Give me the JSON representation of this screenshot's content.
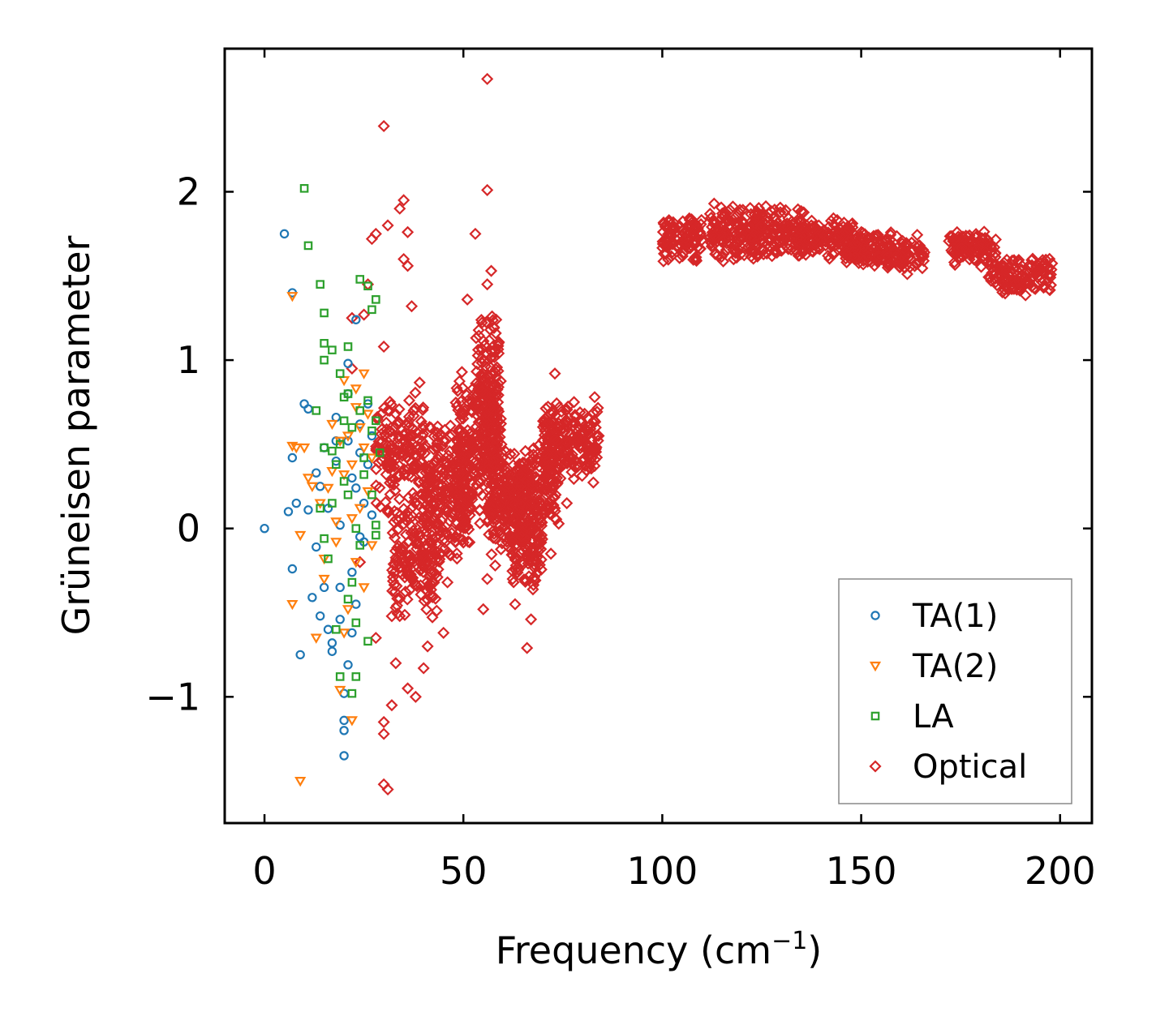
{
  "chart_data": {
    "type": "scatter",
    "title": "",
    "xlabel": "Frequency (cm",
    "xlabel_sup": "−1",
    "xlabel_end": ")",
    "ylabel": "Grüneisen parameter",
    "xlim": [
      -10,
      208
    ],
    "ylim": [
      -1.75,
      2.85
    ],
    "x_ticks": [
      0,
      50,
      100,
      150,
      200
    ],
    "x_tick_labels": [
      "0",
      "50",
      "100",
      "150",
      "200"
    ],
    "y_ticks": [
      -1,
      0,
      1,
      2
    ],
    "y_tick_labels": [
      "−1",
      "0",
      "1",
      "2"
    ],
    "grid": false,
    "legend_position": "bottom-right",
    "series": [
      {
        "name": "TA(1)",
        "color": "#1f77b4",
        "marker": "circle",
        "points": [
          [
            0,
            0
          ],
          [
            5,
            1.75
          ],
          [
            7,
            1.4
          ],
          [
            6,
            0.1
          ],
          [
            7,
            0.42
          ],
          [
            8,
            0.15
          ],
          [
            10,
            0.74
          ],
          [
            11,
            0.71
          ],
          [
            11,
            0.11
          ],
          [
            12,
            -0.41
          ],
          [
            13,
            0.33
          ],
          [
            13,
            -0.11
          ],
          [
            14,
            0.25
          ],
          [
            14,
            -0.52
          ],
          [
            15,
            0.48
          ],
          [
            15,
            -0.35
          ],
          [
            16,
            0.12
          ],
          [
            17,
            -0.68
          ],
          [
            17,
            -0.73
          ],
          [
            18,
            0.66
          ],
          [
            18,
            0.4
          ],
          [
            19,
            -0.54
          ],
          [
            19,
            0.02
          ],
          [
            20,
            -1.14
          ],
          [
            20,
            -1.2
          ],
          [
            20,
            -1.35
          ],
          [
            20,
            -0.98
          ],
          [
            21,
            0.98
          ],
          [
            21,
            0.8
          ],
          [
            21,
            0.52
          ],
          [
            22,
            0.3
          ],
          [
            22,
            -0.26
          ],
          [
            23,
            0.24
          ],
          [
            23,
            1.24
          ],
          [
            23,
            -0.45
          ],
          [
            24,
            0.62
          ],
          [
            24,
            -0.05
          ],
          [
            25,
            0.15
          ],
          [
            26,
            0.74
          ],
          [
            26,
            0.38
          ],
          [
            27,
            0.55
          ],
          [
            27,
            0.08
          ],
          [
            7,
            -0.24
          ],
          [
            9,
            -0.75
          ],
          [
            16,
            -0.6
          ],
          [
            18,
            0.52
          ],
          [
            19,
            -0.35
          ],
          [
            22,
            -0.62
          ],
          [
            21,
            -0.81
          ],
          [
            24,
            0.45
          ],
          [
            25,
            -0.08
          ]
        ]
      },
      {
        "name": "TA(2)",
        "color": "#ff7f0e",
        "marker": "triangle",
        "points": [
          [
            7,
            1.38
          ],
          [
            9,
            -1.5
          ],
          [
            7,
            0.49
          ],
          [
            8,
            0.48
          ],
          [
            9,
            -0.04
          ],
          [
            10,
            0.48
          ],
          [
            11,
            0.3
          ],
          [
            12,
            0.25
          ],
          [
            7,
            -0.45
          ],
          [
            14,
            0.15
          ],
          [
            15,
            -0.3
          ],
          [
            16,
            0.24
          ],
          [
            17,
            0.34
          ],
          [
            18,
            0.04
          ],
          [
            19,
            0.52
          ],
          [
            20,
            0.88
          ],
          [
            20,
            -0.62
          ],
          [
            21,
            0.55
          ],
          [
            22,
            0.38
          ],
          [
            22,
            -1.14
          ],
          [
            23,
            0.72
          ],
          [
            23,
            -0.2
          ],
          [
            24,
            0.6
          ],
          [
            24,
            0.12
          ],
          [
            25,
            0.48
          ],
          [
            25,
            -0.35
          ],
          [
            26,
            0.68
          ],
          [
            26,
            0.22
          ],
          [
            27,
            0.42
          ],
          [
            27,
            -0.1
          ],
          [
            15,
            -0.18
          ],
          [
            13,
            -0.65
          ],
          [
            19,
            -0.96
          ],
          [
            21,
            -0.48
          ],
          [
            23,
            0.83
          ],
          [
            20,
            0.32
          ],
          [
            22,
            0.06
          ],
          [
            18,
            -0.08
          ],
          [
            17,
            0.62
          ],
          [
            25,
            0.92
          ]
        ]
      },
      {
        "name": "LA",
        "color": "#2ca02c",
        "marker": "square",
        "points": [
          [
            10,
            2.02
          ],
          [
            11,
            1.68
          ],
          [
            14,
            1.45
          ],
          [
            15,
            1.28
          ],
          [
            15,
            1.1
          ],
          [
            15,
            1.0
          ],
          [
            17,
            1.06
          ],
          [
            21,
            1.08
          ],
          [
            24,
            1.48
          ],
          [
            26,
            1.44
          ],
          [
            27,
            1.3
          ],
          [
            28,
            1.36
          ],
          [
            13,
            0.7
          ],
          [
            15,
            0.48
          ],
          [
            17,
            0.46
          ],
          [
            18,
            0.38
          ],
          [
            19,
            0.5
          ],
          [
            20,
            0.78
          ],
          [
            20,
            0.64
          ],
          [
            21,
            0.8
          ],
          [
            21,
            0.2
          ],
          [
            22,
            0.6
          ],
          [
            22,
            -0.98
          ],
          [
            22,
            -0.32
          ],
          [
            23,
            0.0
          ],
          [
            23,
            -0.56
          ],
          [
            24,
            0.7
          ],
          [
            24,
            -0.1
          ],
          [
            25,
            0.42
          ],
          [
            25,
            0.32
          ],
          [
            26,
            -0.67
          ],
          [
            27,
            0.58
          ],
          [
            27,
            0.2
          ],
          [
            28,
            0.64
          ],
          [
            28,
            0.02
          ],
          [
            29,
            0.45
          ],
          [
            16,
            -0.18
          ],
          [
            15,
            -0.06
          ],
          [
            14,
            0.12
          ],
          [
            18,
            -0.6
          ],
          [
            19,
            -0.88
          ],
          [
            21,
            -0.42
          ],
          [
            23,
            -0.88
          ],
          [
            17,
            0.15
          ],
          [
            20,
            0.28
          ],
          [
            26,
            0.76
          ],
          [
            28,
            -0.04
          ],
          [
            19,
            0.92
          ]
        ]
      },
      {
        "name": "Optical",
        "color": "#d62728",
        "marker": "diamond",
        "points": []
      }
    ],
    "optical_outliers": [
      [
        56,
        2.67
      ],
      [
        30,
        2.39
      ],
      [
        56,
        2.01
      ],
      [
        53,
        1.75
      ],
      [
        31,
        1.8
      ],
      [
        35,
        1.95
      ],
      [
        34,
        1.9
      ],
      [
        36,
        1.76
      ],
      [
        27,
        1.72
      ],
      [
        28,
        1.75
      ],
      [
        26,
        1.45
      ],
      [
        57,
        1.53
      ],
      [
        56,
        1.45
      ],
      [
        35,
        1.6
      ],
      [
        36,
        1.56
      ],
      [
        37,
        1.32
      ],
      [
        51,
        1.36
      ],
      [
        30,
        1.08
      ],
      [
        22,
        1.25
      ],
      [
        25,
        1.27
      ],
      [
        73,
        0.92
      ],
      [
        63,
        -0.45
      ],
      [
        66,
        -0.71
      ],
      [
        67,
        -0.54
      ],
      [
        55,
        -0.48
      ],
      [
        28,
        -0.65
      ],
      [
        30,
        -1.15
      ],
      [
        30,
        -1.22
      ],
      [
        30,
        -1.52
      ],
      [
        31,
        -1.55
      ],
      [
        32,
        -1.05
      ],
      [
        36,
        -0.95
      ],
      [
        38,
        -1.0
      ],
      [
        24,
        -0.2
      ],
      [
        22,
        0.95
      ],
      [
        41,
        -0.7
      ],
      [
        45,
        -0.62
      ],
      [
        72,
        -0.15
      ],
      [
        76,
        0.15
      ],
      [
        84,
        0.55
      ],
      [
        83,
        0.78
      ],
      [
        34,
        -0.52
      ],
      [
        40,
        -0.83
      ],
      [
        33,
        -0.8
      ],
      [
        58,
        -0.22
      ],
      [
        56,
        -0.3
      ],
      [
        46,
        -0.32
      ]
    ],
    "optical_clusters": [
      {
        "x": [
          28,
          40
        ],
        "y": [
          0.0,
          0.9
        ],
        "n": 160
      },
      {
        "x": [
          32,
          44
        ],
        "y": [
          -0.55,
          0.2
        ],
        "n": 170
      },
      {
        "x": [
          40,
          52
        ],
        "y": [
          -0.25,
          0.7
        ],
        "n": 240
      },
      {
        "x": [
          48,
          60
        ],
        "y": [
          0.0,
          0.95
        ],
        "n": 230
      },
      {
        "x": [
          53,
          59
        ],
        "y": [
          0.3,
          1.3
        ],
        "n": 130
      },
      {
        "x": [
          56,
          66
        ],
        "y": [
          -0.2,
          0.5
        ],
        "n": 190
      },
      {
        "x": [
          62,
          70
        ],
        "y": [
          -0.4,
          0.3
        ],
        "n": 150
      },
      {
        "x": [
          64,
          74
        ],
        "y": [
          0.0,
          0.55
        ],
        "n": 160
      },
      {
        "x": [
          70,
          84
        ],
        "y": [
          0.25,
          0.78
        ],
        "n": 210
      },
      {
        "x": [
          100,
          110
        ],
        "y": [
          1.55,
          1.9
        ],
        "n": 110
      },
      {
        "x": [
          112,
          124
        ],
        "y": [
          1.55,
          1.95
        ],
        "n": 140
      },
      {
        "x": [
          122,
          136
        ],
        "y": [
          1.6,
          1.92
        ],
        "n": 150
      },
      {
        "x": [
          134,
          148
        ],
        "y": [
          1.6,
          1.85
        ],
        "n": 140
      },
      {
        "x": [
          146,
          158
        ],
        "y": [
          1.55,
          1.78
        ],
        "n": 120
      },
      {
        "x": [
          156,
          166
        ],
        "y": [
          1.48,
          1.75
        ],
        "n": 80
      },
      {
        "x": [
          172,
          184
        ],
        "y": [
          1.55,
          1.78
        ],
        "n": 110
      },
      {
        "x": [
          182,
          198
        ],
        "y": [
          1.38,
          1.62
        ],
        "n": 130
      }
    ]
  }
}
